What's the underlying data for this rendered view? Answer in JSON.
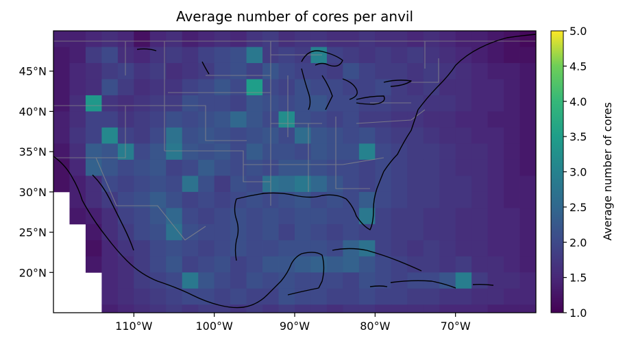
{
  "chart_data": {
    "type": "heatmap",
    "title": "Average number of cores per anvil",
    "xlabel": "",
    "ylabel": "",
    "xlim": [
      -120,
      -60
    ],
    "ylim": [
      15,
      50
    ],
    "x_ticks": [
      -110,
      -100,
      -90,
      -80,
      -70
    ],
    "x_tick_labels": [
      "110°W",
      "100°W",
      "90°W",
      "80°W",
      "70°W"
    ],
    "y_ticks": [
      20,
      25,
      30,
      35,
      40,
      45
    ],
    "y_tick_labels": [
      "20°N",
      "25°N",
      "30°N",
      "35°N",
      "40°N",
      "45°N"
    ],
    "colorbar": {
      "label": "Average number of cores",
      "range": [
        1.0,
        5.0
      ],
      "ticks": [
        1.0,
        1.5,
        2.0,
        2.5,
        3.0,
        3.5,
        4.0,
        4.5,
        5.0
      ],
      "tick_labels": [
        "1.0",
        "1.5",
        "2.0",
        "2.5",
        "3.0",
        "3.5",
        "4.0",
        "4.5",
        "5.0"
      ],
      "colormap": "viridis"
    },
    "cell_size_deg": 2,
    "lon_centers": [
      -119,
      -117,
      -115,
      -113,
      -111,
      -109,
      -107,
      -105,
      -103,
      -101,
      -99,
      -97,
      -95,
      -93,
      -91,
      -89,
      -87,
      -85,
      -83,
      -81,
      -79,
      -77,
      -75,
      -73,
      -71,
      -69,
      -67,
      -65,
      -63,
      -61
    ],
    "lat_centers": [
      49,
      47,
      45,
      43,
      41,
      39,
      37,
      35,
      33,
      31,
      29,
      27,
      25,
      23,
      21,
      19,
      17,
      15
    ],
    "values": [
      [
        1.4,
        1.4,
        1.5,
        1.6,
        1.5,
        1.2,
        1.5,
        1.6,
        1.4,
        1.5,
        1.6,
        1.5,
        1.7,
        1.8,
        1.6,
        1.7,
        1.7,
        1.6,
        1.6,
        1.7,
        1.6,
        1.6,
        1.5,
        1.6,
        1.5,
        1.4,
        1.4,
        1.3,
        1.2,
        1.1
      ],
      [
        1.3,
        1.4,
        1.8,
        2.0,
        1.6,
        1.5,
        1.7,
        1.8,
        1.7,
        1.9,
        2.0,
        2.1,
        2.8,
        1.8,
        1.9,
        1.8,
        3.0,
        1.9,
        1.8,
        1.7,
        1.8,
        1.7,
        1.8,
        1.7,
        1.6,
        1.5,
        1.4,
        1.3,
        1.2,
        1.2
      ],
      [
        1.3,
        1.5,
        1.6,
        1.8,
        1.9,
        1.7,
        1.8,
        1.6,
        1.7,
        1.8,
        2.0,
        2.1,
        1.9,
        2.2,
        2.0,
        1.9,
        1.9,
        1.8,
        2.1,
        1.9,
        1.8,
        1.8,
        1.7,
        1.8,
        1.7,
        1.6,
        1.5,
        1.4,
        1.4,
        1.3
      ],
      [
        1.3,
        1.5,
        1.6,
        2.1,
        1.8,
        1.6,
        1.7,
        1.7,
        1.9,
        2.0,
        2.2,
        2.0,
        3.5,
        2.0,
        1.9,
        2.1,
        2.0,
        2.0,
        1.9,
        1.9,
        2.0,
        1.8,
        1.7,
        1.8,
        1.6,
        1.6,
        1.5,
        1.5,
        1.4,
        1.3
      ],
      [
        1.3,
        1.6,
        3.4,
        1.7,
        1.6,
        1.7,
        1.8,
        1.8,
        2.1,
        2.0,
        2.0,
        1.9,
        2.2,
        2.1,
        2.0,
        2.1,
        2.2,
        2.0,
        2.0,
        1.9,
        1.9,
        1.8,
        1.8,
        1.7,
        1.7,
        1.6,
        1.5,
        1.5,
        1.4,
        1.3
      ],
      [
        1.4,
        1.6,
        1.9,
        1.9,
        1.7,
        1.8,
        1.9,
        2.1,
        2.0,
        2.1,
        2.2,
        2.5,
        2.2,
        2.0,
        3.2,
        2.1,
        2.0,
        1.9,
        2.0,
        1.8,
        1.8,
        1.7,
        1.7,
        1.6,
        1.6,
        1.5,
        1.5,
        1.4,
        1.4,
        1.3
      ],
      [
        1.4,
        1.7,
        1.9,
        3.1,
        1.9,
        1.8,
        2.0,
        2.7,
        2.1,
        2.2,
        2.1,
        2.0,
        2.1,
        2.2,
        2.0,
        2.6,
        2.2,
        2.1,
        2.0,
        2.1,
        1.9,
        1.8,
        1.8,
        1.7,
        1.6,
        1.6,
        1.5,
        1.5,
        1.4,
        1.3
      ],
      [
        1.3,
        1.6,
        2.3,
        2.2,
        2.9,
        2.0,
        2.2,
        2.8,
        2.2,
        2.1,
        2.2,
        2.0,
        2.3,
        2.1,
        2.1,
        2.0,
        2.2,
        2.1,
        2.1,
        3.0,
        2.0,
        1.9,
        1.8,
        1.8,
        1.7,
        1.6,
        1.6,
        1.5,
        1.4,
        1.3
      ],
      [
        1.2,
        1.5,
        2.4,
        2.2,
        2.0,
        2.1,
        2.2,
        1.9,
        2.0,
        2.3,
        2.1,
        2.0,
        2.1,
        2.0,
        2.2,
        2.2,
        2.1,
        2.0,
        2.0,
        1.9,
        2.0,
        1.9,
        1.8,
        1.8,
        1.7,
        1.6,
        1.6,
        1.5,
        1.4,
        1.3
      ],
      [
        1.2,
        1.4,
        1.6,
        2.0,
        1.9,
        2.0,
        2.1,
        2.0,
        2.7,
        2.1,
        1.8,
        2.1,
        2.0,
        2.7,
        2.6,
        2.8,
        2.5,
        2.2,
        2.0,
        1.9,
        2.0,
        1.9,
        1.8,
        1.8,
        1.7,
        1.7,
        1.6,
        1.5,
        1.4,
        1.4
      ],
      [
        null,
        1.4,
        1.6,
        1.8,
        2.0,
        2.1,
        2.3,
        2.1,
        1.9,
        2.0,
        1.9,
        2.0,
        2.1,
        2.0,
        2.1,
        2.2,
        2.0,
        2.1,
        2.0,
        2.3,
        2.0,
        1.9,
        1.8,
        1.8,
        1.7,
        1.7,
        1.6,
        1.5,
        1.4,
        1.4
      ],
      [
        null,
        1.3,
        1.4,
        1.6,
        1.9,
        2.0,
        2.2,
        2.5,
        2.0,
        1.9,
        2.0,
        2.1,
        2.0,
        2.1,
        2.0,
        2.1,
        2.1,
        2.0,
        2.0,
        2.8,
        1.9,
        1.8,
        1.8,
        1.7,
        1.7,
        1.6,
        1.6,
        1.5,
        1.5,
        1.4
      ],
      [
        null,
        null,
        1.3,
        1.6,
        1.8,
        2.0,
        2.1,
        2.7,
        2.1,
        2.0,
        2.0,
        2.1,
        2.0,
        2.1,
        1.9,
        2.1,
        2.0,
        1.9,
        2.0,
        1.9,
        1.9,
        1.8,
        1.8,
        1.7,
        1.7,
        1.6,
        1.6,
        1.5,
        1.5,
        1.4
      ],
      [
        null,
        null,
        1.2,
        1.5,
        1.7,
        1.8,
        2.0,
        2.1,
        2.0,
        1.9,
        2.0,
        2.1,
        2.0,
        2.0,
        2.1,
        2.1,
        2.1,
        2.0,
        2.4,
        2.7,
        1.9,
        1.8,
        1.7,
        1.8,
        1.7,
        1.6,
        1.6,
        1.5,
        1.5,
        1.4
      ],
      [
        null,
        null,
        1.3,
        1.5,
        1.6,
        1.8,
        2.0,
        2.2,
        1.9,
        2.0,
        2.1,
        1.9,
        2.0,
        2.2,
        2.2,
        2.3,
        2.4,
        2.3,
        2.4,
        2.2,
        2.0,
        1.9,
        1.8,
        1.8,
        1.7,
        1.8,
        1.6,
        1.6,
        1.5,
        1.4
      ],
      [
        null,
        null,
        null,
        1.5,
        1.6,
        1.8,
        1.9,
        2.0,
        2.8,
        2.2,
        2.0,
        1.9,
        2.1,
        2.0,
        2.1,
        2.0,
        2.0,
        2.0,
        1.9,
        2.1,
        2.0,
        1.9,
        2.0,
        2.0,
        2.2,
        2.9,
        1.8,
        1.6,
        1.6,
        1.5
      ],
      [
        null,
        null,
        null,
        1.5,
        1.6,
        1.7,
        1.8,
        1.9,
        2.0,
        2.0,
        1.9,
        2.0,
        1.9,
        1.9,
        2.1,
        2.0,
        2.0,
        1.9,
        1.9,
        2.0,
        1.9,
        1.9,
        1.8,
        1.8,
        1.7,
        1.7,
        1.6,
        1.6,
        1.5,
        1.5
      ],
      [
        null,
        null,
        null,
        1.4,
        1.5,
        1.6,
        1.7,
        1.8,
        1.7,
        1.8,
        1.8,
        1.7,
        1.8,
        1.7,
        1.8,
        1.7,
        1.7,
        1.6,
        1.7,
        1.7,
        1.6,
        1.6,
        1.6,
        1.6,
        1.5,
        1.5,
        1.5,
        1.4,
        1.4,
        1.4
      ]
    ]
  }
}
